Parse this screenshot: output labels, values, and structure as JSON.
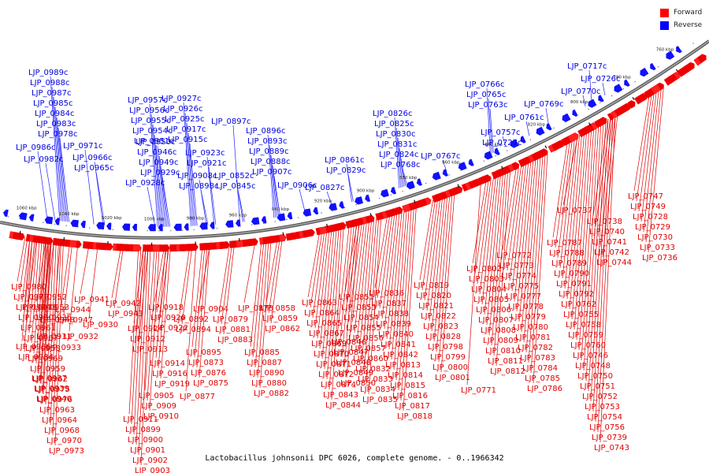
{
  "legend": [
    {
      "label": "Forward",
      "color": "#ff0000"
    },
    {
      "label": "Reverse",
      "color": "#0000ff"
    }
  ],
  "caption": "Lactobacillus johnsonii DPC 6026, complete genome. - 0..1966342",
  "ticks": [
    "760 kbp",
    "780 kbp",
    "800 kbp",
    "820 kbp",
    "840 kbp",
    "860 kbp",
    "880 kbp",
    "900 kbp",
    "920 kbp",
    "940 kbp",
    "960 kbp",
    "980 kbp",
    "1000 kbp",
    "1020 kbp",
    "1040 kbp",
    "1060 kbp"
  ],
  "reverse_labels": [
    "LJP_0989c",
    "LJP_0988c",
    "LJP_0987c",
    "LJP_0985c",
    "LJP_0984c",
    "LJP_0983c",
    "LJP_0978c",
    "LJP_0986c",
    "LJP_0971c",
    "LJP_0982c",
    "LJP_0966c",
    "LJP_0965c",
    "LJP_0957c",
    "LJP_0956c",
    "LJP_0955c",
    "LJP_0954c",
    "LJP_0951c",
    "LJP_0950c",
    "LJP_0946c",
    "LJP_0949c",
    "LJP_0929c",
    "LJP_0928c",
    "LJP_0927c",
    "LJP_0926c",
    "LJP_0925c",
    "LJP_0917c",
    "LJP_0915c",
    "LJP_0923c",
    "LJP_0921c",
    "LJP_0908c",
    "LJP_0898c",
    "LJP_0897c",
    "LJP_0896c",
    "LJP_0893c",
    "LJP_0889c",
    "LJP_0888c",
    "LJP_0907c",
    "LJP_0906c",
    "LJP_0852c",
    "LJP_0845c",
    "LJP_0861c",
    "LJP_0829c",
    "LJP_0827c",
    "LJP_0826c",
    "LJP_0825c",
    "LJP_0830c",
    "LJP_0831c",
    "LJP_0824c",
    "LJP_0768c",
    "LJP_0767c",
    "LJP_0766c",
    "LJP_0765c",
    "LJP_0763c",
    "LJP_0761c",
    "LJP_0769c",
    "LJP_0770c",
    "LJP_0757c",
    "LJP_0727c",
    "LJP_0726c",
    "LJP_0717c"
  ],
  "forward_labels": [
    "LJP_0980",
    "LJP_0972",
    "LJP_0974",
    "LJP_0960",
    "LJP_0961",
    "LJP_0967",
    "LJP_0958",
    "LJP_0969",
    "LJP_0959",
    "LJP_0962",
    "LJP_0975",
    "LJP_0976",
    "LJP_0963",
    "LJP_0964",
    "LJP_0968",
    "LJP_0970",
    "LJP_0973",
    "LJP_0952",
    "LJP_0953",
    "LJP_0935",
    "LJP_0938",
    "LJP_0941",
    "LJP_0944",
    "LJP_0947",
    "LJP_0948",
    "LJP_0930",
    "LJP_0931",
    "LJP_0932",
    "LJP_0933",
    "LJP_0936",
    "LJP_0934",
    "LJP_0937",
    "LJP_0939",
    "LJP_0940",
    "LJP_0942",
    "LJP_0943",
    "LJP_0918",
    "LJP_0920",
    "LJP_0922",
    "LJP_0924",
    "LJP_0912",
    "LJP_0913",
    "LJP_0914",
    "LJP_0916",
    "LJP_0919",
    "LJP_0905",
    "LJP_0909",
    "LJP_0910",
    "LJP_0911",
    "LJP_0899",
    "LJP_0900",
    "LJP_0901",
    "LJP_0902",
    "LJP_0903",
    "LJP_0904",
    "LJP_0892",
    "LJP_0894",
    "LJP_0895",
    "LJP_0873",
    "LJP_0876",
    "LJP_0875",
    "LJP_0877",
    "LJP_0878",
    "LJP_0879",
    "LJP_0881",
    "LJP_0883",
    "LJP_0885",
    "LJP_0887",
    "LJP_0890",
    "LJP_0880",
    "LJP_0882",
    "LJP_0858",
    "LJP_0859",
    "LJP_0862",
    "LJP_0863",
    "LJP_0864",
    "LJP_0865",
    "LJP_0867",
    "LJP_0869",
    "LJP_0870",
    "LJP_0871",
    "LJP_0872",
    "LJP_0874",
    "LJP_0843",
    "LJP_0844",
    "LJP_0846",
    "LJP_0847",
    "LJP_0848",
    "LJP_0849",
    "LJP_0850",
    "LJP_0851",
    "LJP_0853",
    "LJP_0854",
    "LJP_0855",
    "LJP_0856",
    "LJP_0857",
    "LJP_0860",
    "LJP_0832",
    "LJP_0833",
    "LJP_0834",
    "LJP_0835",
    "LJP_0836",
    "LJP_0837",
    "LJP_0838",
    "LJP_0839",
    "LJP_0840",
    "LJP_0841",
    "LJP_0842",
    "LJP_0813",
    "LJP_0814",
    "LJP_0815",
    "LJP_0816",
    "LJP_0817",
    "LJP_0818",
    "LJP_0819",
    "LJP_0820",
    "LJP_0821",
    "LJP_0822",
    "LJP_0823",
    "LJP_0828",
    "LJP_0798",
    "LJP_0799",
    "LJP_0800",
    "LJP_0801",
    "LJP_0802",
    "LJP_0803",
    "LJP_0804",
    "LJP_0805",
    "LJP_0806",
    "LJP_0807",
    "LJP_0808",
    "LJP_0809",
    "LJP_0810",
    "LJP_0811",
    "LJP_0812",
    "LJP_0771",
    "LJP_0772",
    "LJP_0773",
    "LJP_0774",
    "LJP_0775",
    "LJP_0777",
    "LJP_0778",
    "LJP_0779",
    "LJP_0780",
    "LJP_0781",
    "LJP_0782",
    "LJP_0783",
    "LJP_0784",
    "LJP_0785",
    "LJP_0786",
    "LJP_0787",
    "LJP_0788",
    "LJP_0789",
    "LJP_0790",
    "LJP_0791",
    "LJP_0792",
    "LJP_0762",
    "LJP_0755",
    "LJP_0758",
    "LJP_0759",
    "LJP_0760",
    "LJP_0746",
    "LJP_0748",
    "LJP_0750",
    "LJP_0751",
    "LJP_0752",
    "LJP_0753",
    "LJP_0754",
    "LJP_0756",
    "LJP_0739",
    "LJP_0743",
    "LJP_0737",
    "LJP_0738",
    "LJP_0740",
    "LJP_0741",
    "LJP_0742",
    "LJP_0744",
    "LJP_0747",
    "LJP_0749",
    "LJP_0728",
    "LJP_0729",
    "LJP_0730",
    "LJP_0733",
    "LJP_0736"
  ]
}
